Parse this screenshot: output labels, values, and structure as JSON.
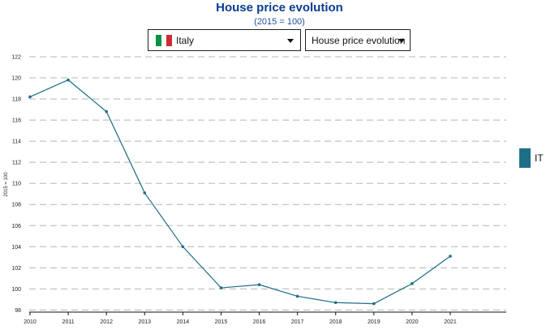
{
  "header": {
    "title": "House price evolution",
    "subtitle": "(2015 = 100)"
  },
  "controls": {
    "country": {
      "selected": "Italy",
      "flag_colors": [
        "#009246",
        "#ffffff",
        "#ce2b37"
      ]
    },
    "indicator": {
      "selected": "House price evolution"
    }
  },
  "legend": {
    "label": "IT",
    "color": "#1c6f86"
  },
  "chart_data": {
    "type": "line",
    "title": "House price evolution",
    "subtitle": "(2015 = 100)",
    "xlabel": "",
    "ylabel": "2015 = 100",
    "x": [
      "2010",
      "2011",
      "2012",
      "2013",
      "2014",
      "2015",
      "2016",
      "2017",
      "2018",
      "2019",
      "2020",
      "2021"
    ],
    "series": [
      {
        "name": "IT",
        "color": "#1c6f86",
        "values": [
          118.2,
          119.8,
          116.8,
          109.1,
          104.0,
          100.1,
          100.4,
          99.3,
          98.7,
          98.6,
          100.5,
          103.1
        ]
      }
    ],
    "ylim": [
      97.8,
      122
    ],
    "yticks": [
      98,
      100,
      102,
      104,
      106,
      108,
      110,
      112,
      114,
      116,
      118,
      120,
      122
    ],
    "grid": {
      "y": true,
      "x": false,
      "style": "dashed"
    },
    "legend_position": "right"
  }
}
